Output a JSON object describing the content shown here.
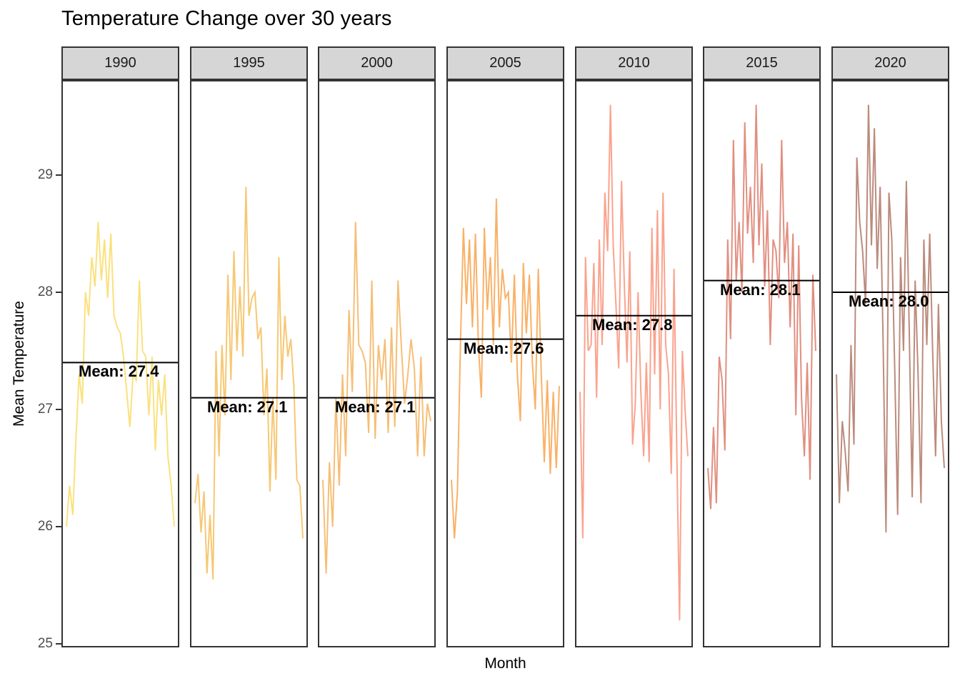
{
  "title": "Temperature Change over 30 years",
  "axes": {
    "y_label": "Mean Temperature",
    "x_label": "Month",
    "y_ticks": [
      29,
      28,
      27,
      26,
      25
    ],
    "y_range": [
      24.98,
      29.82
    ],
    "x_tick_labels": []
  },
  "chart_data": {
    "type": "line",
    "title": "Temperature Change over 30 years",
    "xlabel": "Month",
    "ylabel": "Mean Temperature",
    "ylim": [
      24.98,
      29.82
    ],
    "grid": false,
    "legend": false,
    "facets": [
      {
        "year": "1990",
        "mean": 27.4,
        "mean_label": "Mean: 27.4",
        "color": "#fae17e",
        "values": [
          26.0,
          26.35,
          26.1,
          26.75,
          27.3,
          27.05,
          28.0,
          27.8,
          28.3,
          28.05,
          28.6,
          28.1,
          28.45,
          27.95,
          28.5,
          27.8,
          27.7,
          27.65,
          27.45,
          27.15,
          26.85,
          27.3,
          27.25,
          28.1,
          27.5,
          27.45,
          26.95,
          27.45,
          26.65,
          27.25,
          26.95,
          27.3,
          26.6,
          26.35,
          26.0
        ]
      },
      {
        "year": "1995",
        "mean": 27.1,
        "mean_label": "Mean: 27.1",
        "color": "#f6c873",
        "values": [
          26.2,
          26.45,
          25.95,
          26.3,
          25.6,
          26.1,
          25.55,
          27.5,
          26.6,
          27.55,
          26.95,
          28.15,
          27.25,
          28.35,
          27.5,
          28.05,
          27.45,
          28.9,
          27.8,
          27.95,
          28.0,
          27.6,
          27.7,
          26.95,
          27.35,
          26.3,
          27.1,
          26.4,
          28.3,
          27.25,
          27.8,
          27.45,
          27.6,
          27.2,
          26.4,
          26.35,
          25.9
        ]
      },
      {
        "year": "2000",
        "mean": 27.1,
        "mean_label": "Mean: 27.1",
        "color": "#f6be75",
        "values": [
          26.4,
          25.6,
          26.55,
          26.0,
          27.1,
          26.35,
          27.3,
          26.6,
          27.85,
          27.15,
          28.6,
          27.55,
          27.5,
          27.4,
          26.8,
          28.1,
          26.75,
          27.55,
          27.25,
          27.6,
          26.8,
          27.7,
          26.85,
          28.1,
          27.55,
          27.05,
          27.3,
          27.6,
          27.35,
          26.6,
          27.45,
          26.6,
          27.05,
          26.9
        ]
      },
      {
        "year": "2005",
        "mean": 27.6,
        "mean_label": "Mean: 27.6",
        "color": "#f9b167",
        "values": [
          26.4,
          25.9,
          26.3,
          27.55,
          28.55,
          27.9,
          28.45,
          27.7,
          28.5,
          27.55,
          27.1,
          28.55,
          27.85,
          28.3,
          27.55,
          28.8,
          27.7,
          28.2,
          27.95,
          28.0,
          27.4,
          28.15,
          27.3,
          26.9,
          28.25,
          27.65,
          28.15,
          27.4,
          27.0,
          28.2,
          27.3,
          26.55,
          27.25,
          26.45,
          27.15,
          26.5,
          27.2
        ]
      },
      {
        "year": "2010",
        "mean": 27.8,
        "mean_label": "Mean: 27.8",
        "color": "#faa38e",
        "values": [
          27.15,
          25.9,
          28.3,
          27.5,
          27.55,
          28.25,
          27.1,
          28.45,
          27.55,
          28.85,
          28.35,
          29.6,
          28.4,
          27.9,
          27.35,
          28.95,
          28.1,
          27.4,
          28.35,
          26.7,
          27.05,
          28.0,
          27.15,
          26.6,
          27.4,
          26.55,
          28.55,
          27.3,
          28.7,
          27.0,
          28.85,
          27.55,
          27.3,
          26.45,
          28.2,
          26.65,
          25.2,
          27.5,
          27.0,
          26.6
        ]
      },
      {
        "year": "2015",
        "mean": 28.1,
        "mean_label": "Mean: 28.1",
        "color": "#e18f80",
        "values": [
          26.5,
          26.15,
          26.85,
          26.2,
          27.45,
          27.25,
          26.65,
          28.45,
          27.6,
          29.3,
          28.1,
          28.6,
          28.0,
          29.45,
          28.5,
          28.9,
          28.25,
          29.6,
          28.4,
          29.1,
          28.05,
          28.7,
          27.55,
          28.45,
          28.35,
          27.95,
          29.3,
          28.25,
          28.6,
          27.7,
          28.5,
          26.95,
          28.4,
          27.1,
          26.6,
          27.4,
          26.4,
          28.15,
          27.5
        ]
      },
      {
        "year": "2020",
        "mean": 28.0,
        "mean_label": "Mean: 28.0",
        "color": "#bc8b7d",
        "values": [
          27.3,
          26.2,
          26.9,
          26.65,
          26.3,
          27.55,
          26.7,
          29.15,
          28.6,
          28.35,
          27.9,
          29.6,
          28.4,
          29.4,
          28.2,
          28.9,
          27.6,
          25.95,
          28.85,
          28.45,
          27.35,
          26.1,
          28.3,
          27.5,
          28.95,
          27.65,
          26.25,
          28.1,
          27.3,
          26.2,
          28.45,
          27.55,
          28.5,
          27.5,
          26.6,
          27.9,
          26.9,
          26.5
        ]
      }
    ]
  },
  "style": {
    "strip_fill": "#d6d6d6",
    "panel_border": "#333333",
    "mean_line_color": "#000000",
    "background": "#ffffff"
  }
}
